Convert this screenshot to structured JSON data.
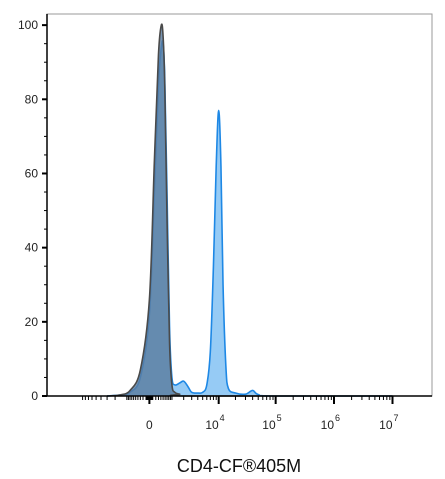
{
  "chart_data": {
    "type": "area",
    "xlabel": "CD4-CF®405M",
    "ylabel": "",
    "ylim": [
      0,
      103
    ],
    "y_ticks": [
      0,
      20,
      40,
      60,
      80,
      100
    ],
    "x_scale": "biexponential",
    "x_ticks": [
      {
        "value": 0,
        "base": "0",
        "exp": ""
      },
      {
        "value": 10000,
        "base": "10",
        "exp": "4"
      },
      {
        "value": 100000,
        "base": "10",
        "exp": "5"
      },
      {
        "value": 1000000,
        "base": "10",
        "exp": "6"
      },
      {
        "value": 10000000,
        "base": "10",
        "exp": "7"
      }
    ],
    "series": [
      {
        "color": "#1e88e5",
        "fill": "#90c8f4",
        "points": [
          [
            -3000,
            0
          ],
          [
            -1500,
            0.3
          ],
          [
            -800,
            1
          ],
          [
            -300,
            5
          ],
          [
            0,
            22
          ],
          [
            150,
            55
          ],
          [
            300,
            84
          ],
          [
            420,
            94
          ],
          [
            500,
            95
          ],
          [
            580,
            86
          ],
          [
            700,
            55
          ],
          [
            850,
            18
          ],
          [
            1000,
            5
          ],
          [
            1200,
            3
          ],
          [
            1600,
            3.5
          ],
          [
            2000,
            4
          ],
          [
            2500,
            2.5
          ],
          [
            3000,
            1
          ],
          [
            4000,
            0.8
          ],
          [
            5000,
            1
          ],
          [
            6000,
            3
          ],
          [
            7000,
            12
          ],
          [
            8000,
            35
          ],
          [
            9000,
            62
          ],
          [
            10000,
            77
          ],
          [
            11000,
            62
          ],
          [
            12000,
            30
          ],
          [
            13500,
            8
          ],
          [
            15000,
            2
          ],
          [
            20000,
            0.8
          ],
          [
            30000,
            0.5
          ],
          [
            40000,
            1.5
          ],
          [
            50000,
            0.4
          ],
          [
            100000,
            0
          ],
          [
            10000000,
            0
          ]
        ]
      },
      {
        "color": "#4a4a4a",
        "fill": "#5a7ca0",
        "points": [
          [
            -3000,
            0
          ],
          [
            -1500,
            0.3
          ],
          [
            -800,
            1.5
          ],
          [
            -300,
            7
          ],
          [
            0,
            26
          ],
          [
            150,
            63
          ],
          [
            300,
            92
          ],
          [
            420,
            100
          ],
          [
            500,
            97
          ],
          [
            580,
            84
          ],
          [
            700,
            48
          ],
          [
            850,
            14
          ],
          [
            1000,
            3
          ],
          [
            1200,
            1
          ],
          [
            1600,
            0.5
          ],
          [
            2500,
            0
          ],
          [
            10000000,
            0
          ]
        ]
      }
    ]
  }
}
